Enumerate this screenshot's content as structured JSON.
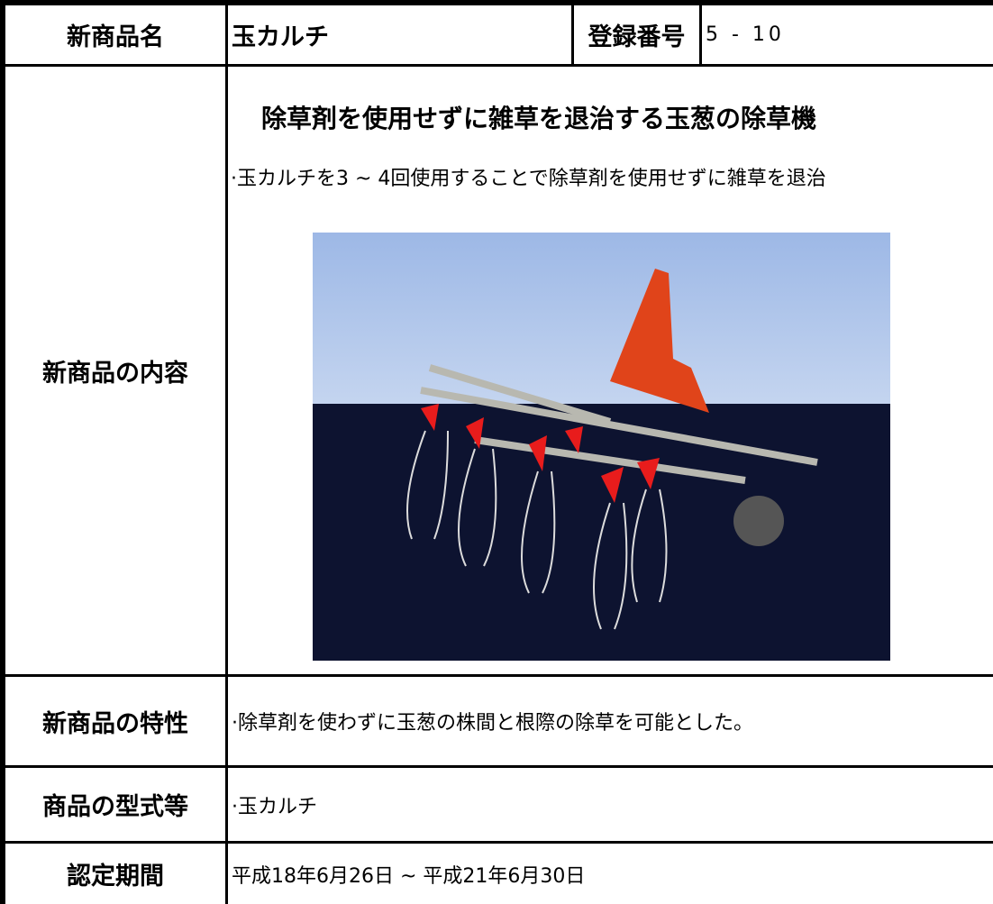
{
  "header": {
    "label": "新商品名",
    "name": "玉カルチ",
    "reg_label": "登録番号",
    "reg_number": "5 - 10"
  },
  "content": {
    "label": "新商品の内容",
    "heading": "除草剤を使用せずに雑草を退治する玉葱の除草機",
    "bullet": "·玉カルチを3 ~ 4回使用することで除草剤を使用せずに雑草を退治"
  },
  "features": {
    "label": "新商品の特性",
    "text": "·除草剤を使わずに玉葱の株間と根際の除草を可能とした。"
  },
  "model": {
    "label": "商品の型式等",
    "text": "·玉カルチ"
  },
  "period": {
    "label": "認定期間",
    "text": "平成18年6月26日 ~ 平成21年6月30日"
  }
}
